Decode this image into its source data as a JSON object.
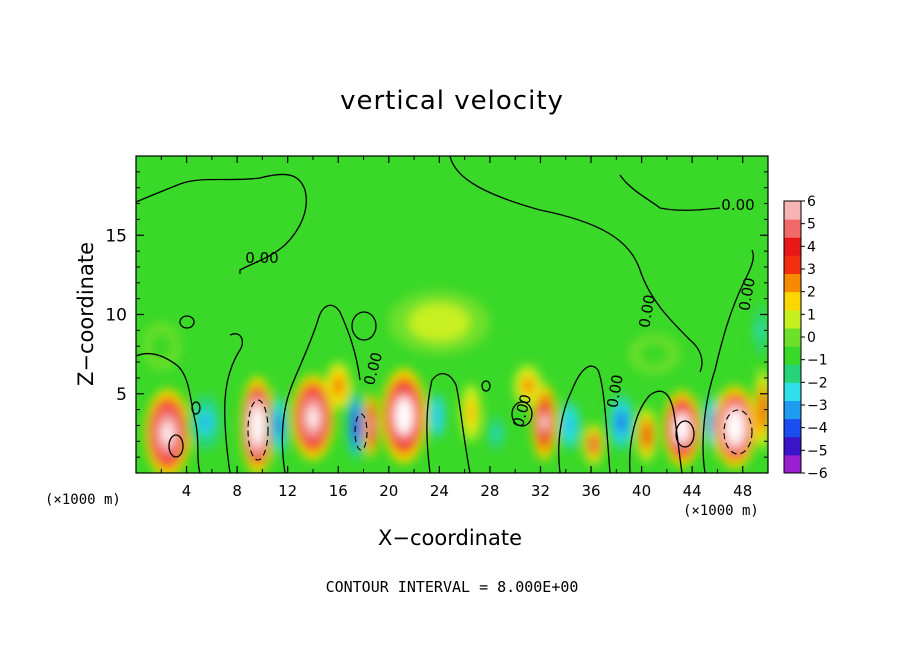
{
  "chart_data": {
    "type": "heatmap",
    "title": "vertical velocity",
    "xlabel": "X−coordinate",
    "ylabel": "Z−coordinate",
    "x_units": "(×1000 m)",
    "footer": "CONTOUR INTERVAL = 8.000E+00",
    "xlim": [
      0,
      50
    ],
    "ylim": [
      0,
      20
    ],
    "x_ticks": [
      4,
      8,
      12,
      16,
      20,
      24,
      28,
      32,
      36,
      40,
      44,
      48
    ],
    "y_ticks": [
      5,
      10,
      15
    ],
    "colorbar": {
      "min": -6,
      "max": 6,
      "ticks": [
        6,
        5,
        4,
        3,
        2,
        1,
        0,
        -1,
        -2,
        -3,
        -4,
        -5,
        -6
      ],
      "labels": [
        "6",
        "5",
        "4",
        "3",
        "2",
        "1",
        "0",
        "−1",
        "−2",
        "−3",
        "−4",
        "−5",
        "−6"
      ],
      "colors": [
        "#9a1fd0",
        "#3a14c8",
        "#1a4ef0",
        "#1f9bf0",
        "#2fe0e8",
        "#25d478",
        "#3ad828",
        "#6fe02a",
        "#c8f020",
        "#f8d800",
        "#f88a00",
        "#f23010",
        "#e81818",
        "#f06a6a",
        "#f6b4b4"
      ]
    },
    "contour_labels": [
      "0.00",
      "0.00",
      "0.00",
      "0.00",
      "0.00",
      "0.00",
      "0.00"
    ],
    "features": [
      {
        "x": 2.5,
        "z": 2.5,
        "w": 3.6,
        "h": 5.6,
        "value": 7.5
      },
      {
        "x": 5.5,
        "z": 3.2,
        "w": 3.0,
        "h": 4.2,
        "value": -3.2
      },
      {
        "x": 9.6,
        "z": 3.0,
        "w": 2.6,
        "h": 6.2,
        "value": 9.5
      },
      {
        "x": 11.3,
        "z": 3.0,
        "w": 1.6,
        "h": 4.8,
        "value": -4.2
      },
      {
        "x": 14.0,
        "z": 3.5,
        "w": 3.4,
        "h": 5.4,
        "value": 7.5
      },
      {
        "x": 17.4,
        "z": 3.0,
        "w": 1.6,
        "h": 5.4,
        "value": -5.0
      },
      {
        "x": 18.6,
        "z": 3.0,
        "w": 1.2,
        "h": 4.0,
        "value": 6.0
      },
      {
        "x": 21.2,
        "z": 3.6,
        "w": 3.6,
        "h": 6.0,
        "value": 8.0
      },
      {
        "x": 23.8,
        "z": 3.6,
        "w": 1.6,
        "h": 3.6,
        "value": -3.5
      },
      {
        "x": 26.5,
        "z": 3.8,
        "w": 1.6,
        "h": 3.6,
        "value": 2.0
      },
      {
        "x": 28.5,
        "z": 2.5,
        "w": 1.8,
        "h": 3.4,
        "value": -2.5
      },
      {
        "x": 32.3,
        "z": 3.2,
        "w": 2.0,
        "h": 4.8,
        "value": 6.5
      },
      {
        "x": 34.3,
        "z": 3.0,
        "w": 2.0,
        "h": 3.8,
        "value": -3.5
      },
      {
        "x": 36.2,
        "z": 1.8,
        "w": 1.6,
        "h": 2.6,
        "value": 4.5
      },
      {
        "x": 38.4,
        "z": 3.2,
        "w": 2.4,
        "h": 4.4,
        "value": -4.0
      },
      {
        "x": 40.4,
        "z": 2.4,
        "w": 1.6,
        "h": 3.4,
        "value": 4.0
      },
      {
        "x": 43.2,
        "z": 2.8,
        "w": 3.0,
        "h": 4.8,
        "value": 8.0
      },
      {
        "x": 45.6,
        "z": 3.2,
        "w": 1.8,
        "h": 4.2,
        "value": -4.0
      },
      {
        "x": 47.4,
        "z": 2.9,
        "w": 3.4,
        "h": 5.2,
        "value": 9.0
      },
      {
        "x": 49.6,
        "z": 4.0,
        "w": 1.4,
        "h": 5.0,
        "value": 3.5
      },
      {
        "x": 49.4,
        "z": 9.0,
        "w": 1.4,
        "h": 5.0,
        "value": -2.5
      },
      {
        "x": 16.0,
        "z": 5.5,
        "w": 2.0,
        "h": 3.0,
        "value": 3.0
      },
      {
        "x": 31.0,
        "z": 5.5,
        "w": 2.2,
        "h": 2.6,
        "value": 2.5
      },
      {
        "x": 24.0,
        "z": 9.5,
        "w": 8.0,
        "h": 4.0,
        "value": 0.7
      },
      {
        "x": 41.0,
        "z": 7.5,
        "w": 4.0,
        "h": 2.5,
        "value": -0.8
      },
      {
        "x": 2.0,
        "z": 8.0,
        "w": 3.0,
        "h": 3.0,
        "value": -0.8
      }
    ]
  }
}
